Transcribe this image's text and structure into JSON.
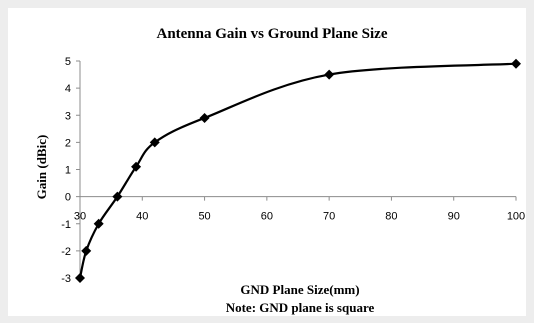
{
  "chart_data": {
    "type": "line",
    "title": "Antenna Gain vs Ground Plane Size",
    "xlabel": "GND Plane Size(mm)",
    "ylabel": "Gain (dBic)",
    "note": "Note: GND plane is square",
    "xlim": [
      30,
      100
    ],
    "ylim": [
      -3,
      5
    ],
    "xticks": [
      30,
      40,
      50,
      60,
      70,
      80,
      90,
      100
    ],
    "yticks": [
      -3,
      -2,
      -1,
      0,
      1,
      2,
      3,
      4,
      5
    ],
    "grid": false,
    "legend": "none",
    "marker": "diamond",
    "line_color": "#000000",
    "series": [
      {
        "x": [
          30,
          31,
          33,
          36,
          39,
          42,
          50,
          70,
          100
        ],
        "y": [
          -3.0,
          -2.0,
          -1.0,
          0.0,
          1.1,
          2.0,
          2.9,
          4.5,
          4.9
        ]
      }
    ]
  }
}
